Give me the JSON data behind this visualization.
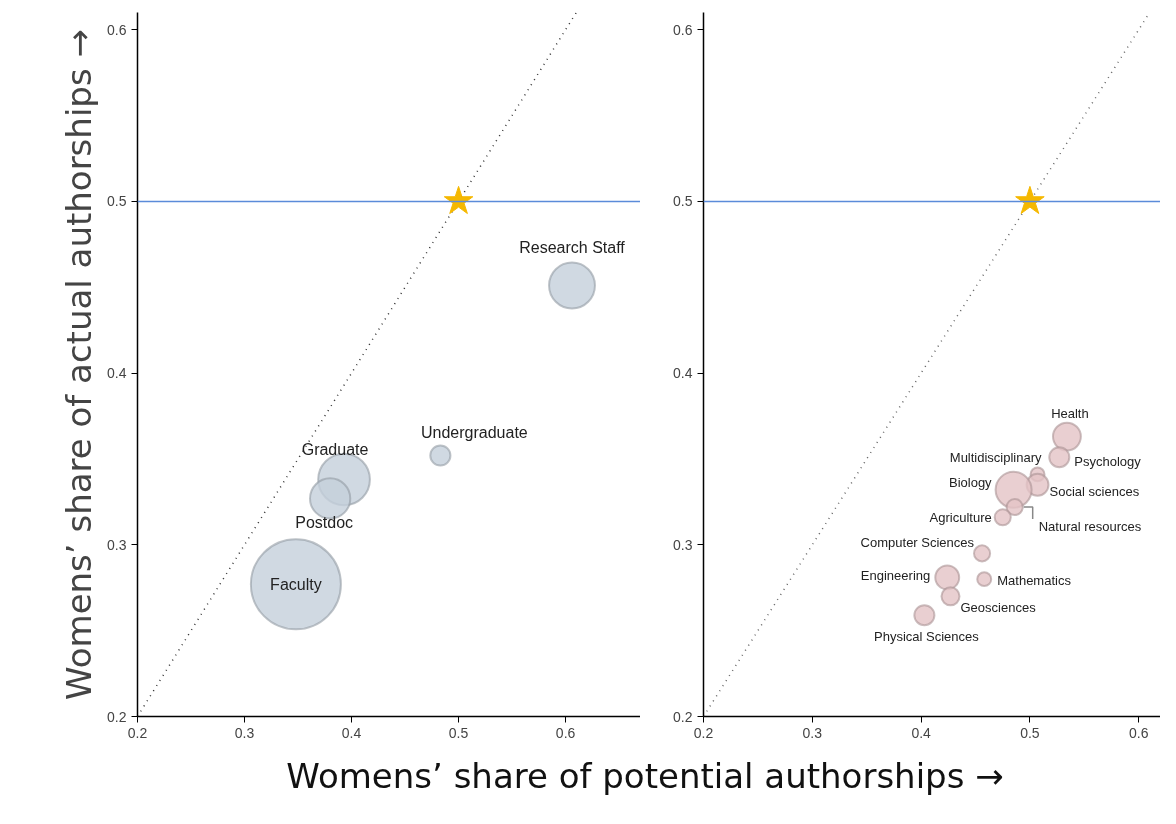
{
  "chart_data": [
    {
      "type": "bubble",
      "ylabel": "Womens’ share of actual authorships →",
      "xlabel": "Womens’ share of potential authorships →",
      "xlim": [
        0.2,
        0.67
      ],
      "ylim": [
        0.2,
        0.61
      ],
      "xticks": [
        0.2,
        0.3,
        0.4,
        0.5,
        0.6
      ],
      "yticks": [
        0.2,
        0.3,
        0.4,
        0.5,
        0.6
      ],
      "ref_lines": [
        {
          "axis": "y",
          "value": 0.5,
          "color": "#5b8bd9"
        }
      ],
      "series": [
        {
          "color": "#c4cfdb",
          "x": [
            0.606,
            0.483,
            0.393,
            0.38,
            0.348
          ],
          "values": [
            0.451,
            0.352,
            0.338,
            0.327,
            0.277
          ],
          "sizes": [
            0.26,
            0.05,
            0.33,
            0.2,
            1
          ]
        },
        {
          "type": "line",
          "color": "#333333",
          "line_style": "dotted",
          "x": [
            0.2,
            0.61
          ],
          "values": [
            0.2,
            0.61
          ]
        },
        {
          "type": "scatter",
          "marker": "star",
          "color": "#f5b800",
          "x": [
            0.5
          ],
          "values": [
            0.5
          ]
        }
      ],
      "annotations": [
        {
          "text": "Research Staff",
          "x": 0.606,
          "y": 0.451
        },
        {
          "text": "Undergraduate",
          "x": 0.483,
          "y": 0.352
        },
        {
          "text": "Graduate",
          "x": 0.393,
          "y": 0.338
        },
        {
          "text": "Postdoc",
          "x": 0.38,
          "y": 0.327
        },
        {
          "text": "Faculty",
          "x": 0.348,
          "y": 0.277
        }
      ]
    },
    {
      "type": "bubble",
      "xlim": [
        0.2,
        0.62
      ],
      "ylim": [
        0.2,
        0.61
      ],
      "xticks": [
        0.2,
        0.3,
        0.4,
        0.5,
        0.6
      ],
      "yticks": [
        0.2,
        0.3,
        0.4,
        0.5,
        0.6
      ],
      "ref_lines": [
        {
          "axis": "y",
          "value": 0.5,
          "color": "#5b8bd9"
        }
      ],
      "series": [
        {
          "color": "#e3c3c6",
          "x": [
            0.534,
            0.527,
            0.507,
            0.507,
            0.485,
            0.486,
            0.475,
            0.456,
            0.458,
            0.424,
            0.427,
            0.403
          ],
          "values": [
            0.363,
            0.351,
            0.341,
            0.335,
            0.332,
            0.322,
            0.316,
            0.295,
            0.28,
            0.281,
            0.27,
            0.259
          ],
          "sizes": [
            0.6,
            0.31,
            0.15,
            0.37,
            1,
            0.2,
            0.2,
            0.2,
            0.15,
            0.44,
            0.25,
            0.31
          ]
        },
        {
          "type": "line",
          "color": "#666666",
          "line_style": "dotted",
          "x": [
            0.2,
            0.61
          ],
          "values": [
            0.2,
            0.61
          ]
        },
        {
          "type": "scatter",
          "marker": "star",
          "color": "#f5b800",
          "x": [
            0.5
          ],
          "values": [
            0.5
          ]
        }
      ],
      "annotations": [
        {
          "text": "Health",
          "x": 0.534,
          "y": 0.363
        },
        {
          "text": "Psychology",
          "x": 0.527,
          "y": 0.351
        },
        {
          "text": "Multidisciplinary",
          "x": 0.507,
          "y": 0.341
        },
        {
          "text": "Social sciences",
          "x": 0.507,
          "y": 0.335
        },
        {
          "text": "Biology",
          "x": 0.485,
          "y": 0.332
        },
        {
          "text": "Natural resources",
          "x": 0.486,
          "y": 0.322
        },
        {
          "text": "Agriculture",
          "x": 0.475,
          "y": 0.316
        },
        {
          "text": "Computer Sciences",
          "x": 0.456,
          "y": 0.295
        },
        {
          "text": "Mathematics",
          "x": 0.458,
          "y": 0.28
        },
        {
          "text": "Engineering",
          "x": 0.424,
          "y": 0.281
        },
        {
          "text": "Geosciences",
          "x": 0.427,
          "y": 0.27
        },
        {
          "text": "Physical Sciences",
          "x": 0.403,
          "y": 0.259
        }
      ]
    }
  ]
}
